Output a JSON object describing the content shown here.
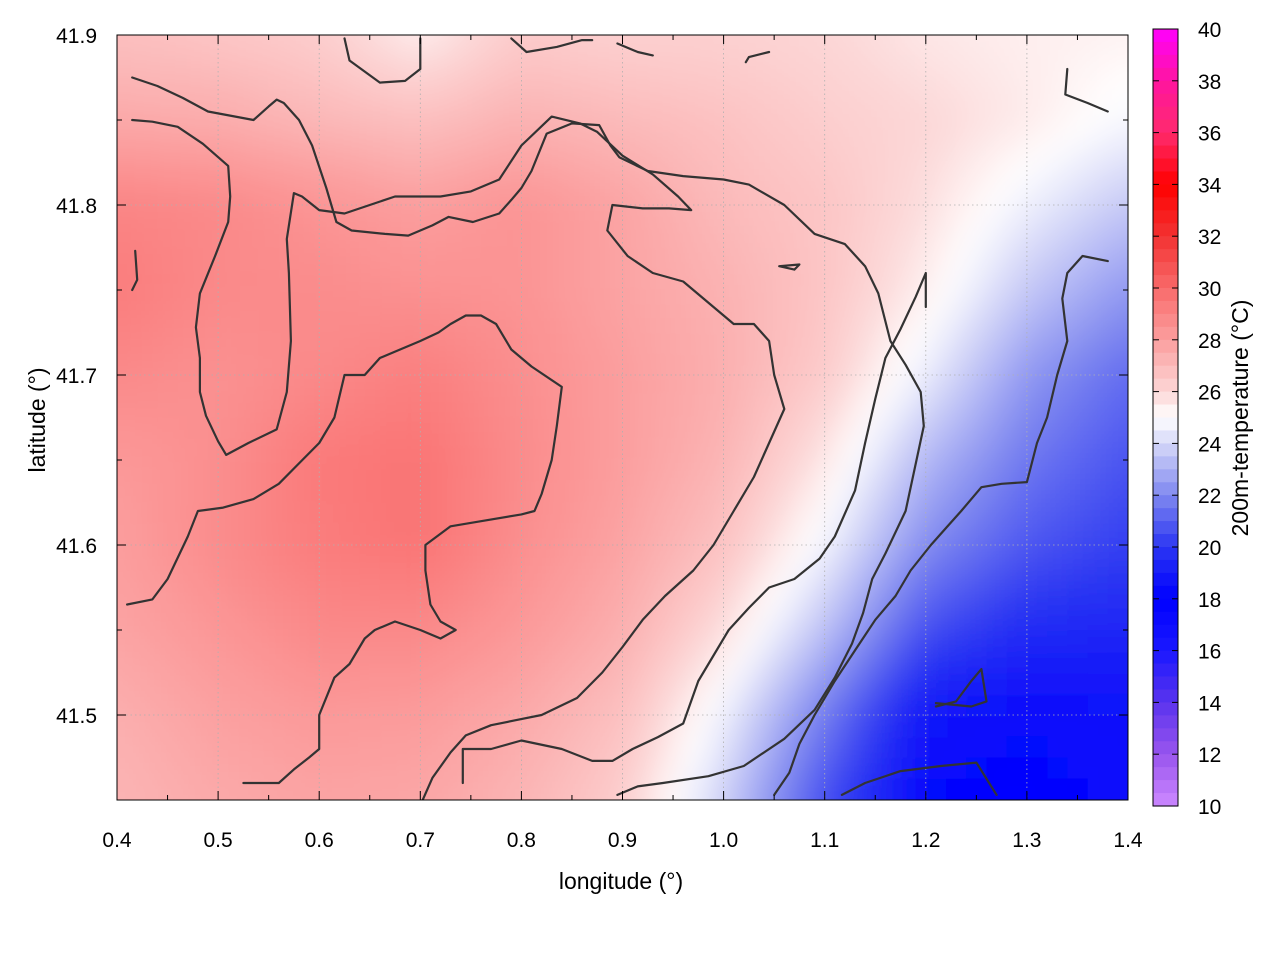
{
  "chart_data": {
    "type": "heatmap",
    "title": "",
    "xlabel": "longitude (°)",
    "ylabel": "latitude (°)",
    "colorbar_label": "200m-temperature (°C)",
    "xlim": [
      0.4,
      1.4
    ],
    "ylim": [
      41.45,
      41.9
    ],
    "clim": [
      10,
      40
    ],
    "x_ticks": [
      "0.4",
      "0.5",
      "0.6",
      "0.7",
      "0.8",
      "0.9",
      "1.0",
      "1.1",
      "1.2",
      "1.3",
      "1.4"
    ],
    "y_ticks": [
      "41.5",
      "41.6",
      "41.7",
      "41.8",
      "41.9"
    ],
    "colorbar_ticks": [
      "10",
      "12",
      "14",
      "16",
      "18",
      "20",
      "22",
      "24",
      "26",
      "28",
      "30",
      "32",
      "34",
      "36",
      "38",
      "40"
    ],
    "grid": true,
    "colormap": [
      {
        "value": 10,
        "color": "#cc88ff"
      },
      {
        "value": 12,
        "color": "#9955ee"
      },
      {
        "value": 14,
        "color": "#5a33ee"
      },
      {
        "value": 16,
        "color": "#1a18ff"
      },
      {
        "value": 18,
        "color": "#0000ff"
      },
      {
        "value": 20,
        "color": "#2b36f2"
      },
      {
        "value": 22,
        "color": "#7f88f0"
      },
      {
        "value": 24,
        "color": "#d6d8f8"
      },
      {
        "value": 25,
        "color": "#ffffff"
      },
      {
        "value": 26,
        "color": "#fcd6d6"
      },
      {
        "value": 28,
        "color": "#fb9e9e"
      },
      {
        "value": 30,
        "color": "#f96a6a"
      },
      {
        "value": 32,
        "color": "#f23232"
      },
      {
        "value": 34,
        "color": "#ff0000"
      },
      {
        "value": 36,
        "color": "#ff2a6e"
      },
      {
        "value": 38,
        "color": "#ff14a0"
      },
      {
        "value": 40,
        "color": "#ff00ff"
      }
    ],
    "temperature_grid": {
      "x": [
        0.4,
        0.5,
        0.6,
        0.7,
        0.8,
        0.9,
        1.0,
        1.1,
        1.2,
        1.3,
        1.4
      ],
      "y": [
        41.9,
        41.85,
        41.8,
        41.75,
        41.7,
        41.65,
        41.6,
        41.55,
        41.5,
        41.45
      ],
      "values": [
        [
          26.8,
          26.6,
          26.3,
          25.4,
          26.4,
          26.2,
          26.2,
          26.0,
          25.6,
          25.4,
          25.3
        ],
        [
          27.6,
          27.5,
          27.1,
          26.8,
          27.3,
          27.0,
          26.7,
          26.3,
          26.0,
          25.5,
          24.8
        ],
        [
          29.0,
          28.8,
          28.4,
          28.0,
          28.4,
          27.8,
          27.0,
          26.6,
          25.8,
          24.6,
          23.6
        ],
        [
          29.3,
          28.8,
          28.7,
          28.5,
          28.4,
          27.8,
          27.3,
          26.6,
          25.4,
          23.6,
          22.4
        ],
        [
          28.8,
          28.5,
          28.8,
          29.2,
          28.6,
          28.0,
          27.4,
          26.4,
          24.5,
          22.4,
          21.3
        ],
        [
          28.2,
          28.6,
          29.4,
          29.6,
          28.7,
          28.0,
          27.2,
          25.6,
          23.2,
          21.6,
          20.7
        ],
        [
          28.0,
          28.7,
          29.3,
          29.6,
          28.6,
          27.8,
          26.7,
          24.7,
          22.1,
          20.8,
          20.2
        ],
        [
          27.8,
          28.3,
          28.8,
          28.8,
          28.2,
          27.4,
          25.8,
          23.4,
          20.6,
          19.6,
          19.4
        ],
        [
          27.4,
          27.9,
          28.2,
          28.1,
          27.6,
          26.8,
          24.6,
          21.7,
          18.8,
          18.4,
          18.6
        ],
        [
          27.2,
          27.6,
          27.8,
          27.7,
          27.2,
          26.3,
          23.8,
          20.6,
          18.2,
          18.0,
          18.4
        ]
      ]
    },
    "contours": [
      [
        [
          0.415,
          41.875
        ],
        [
          0.44,
          41.87
        ],
        [
          0.465,
          41.863
        ],
        [
          0.49,
          41.855
        ],
        [
          0.535,
          41.85
        ],
        [
          0.55,
          41.858
        ],
        [
          0.558,
          41.862
        ],
        [
          0.565,
          41.86
        ],
        [
          0.58,
          41.85
        ],
        [
          0.593,
          41.835
        ],
        [
          0.607,
          41.81
        ],
        [
          0.617,
          41.79
        ],
        [
          0.632,
          41.785
        ],
        [
          0.665,
          41.783
        ],
        [
          0.688,
          41.782
        ],
        [
          0.712,
          41.788
        ],
        [
          0.728,
          41.793
        ],
        [
          0.752,
          41.79
        ],
        [
          0.778,
          41.795
        ],
        [
          0.79,
          41.803
        ],
        [
          0.8,
          41.81
        ],
        [
          0.81,
          41.82
        ],
        [
          0.825,
          41.842
        ],
        [
          0.85,
          41.848
        ],
        [
          0.877,
          41.847
        ],
        [
          0.888,
          41.835
        ],
        [
          0.897,
          41.828
        ],
        [
          0.925,
          41.82
        ],
        [
          0.96,
          41.817
        ],
        [
          1.0,
          41.815
        ],
        [
          1.025,
          41.812
        ],
        [
          1.06,
          41.8
        ],
        [
          1.09,
          41.783
        ],
        [
          1.12,
          41.777
        ],
        [
          1.14,
          41.764
        ],
        [
          1.153,
          41.748
        ],
        [
          1.165,
          41.72
        ],
        [
          1.18,
          41.706
        ],
        [
          1.195,
          41.69
        ],
        [
          1.198,
          41.67
        ],
        [
          1.18,
          41.62
        ],
        [
          1.16,
          41.595
        ],
        [
          1.147,
          41.58
        ],
        [
          1.138,
          41.56
        ],
        [
          1.127,
          41.542
        ],
        [
          1.11,
          41.522
        ],
        [
          1.09,
          41.503
        ],
        [
          1.06,
          41.486
        ],
        [
          1.02,
          41.47
        ],
        [
          0.985,
          41.464
        ],
        [
          0.94,
          41.46
        ],
        [
          0.915,
          41.458
        ],
        [
          0.895,
          41.453
        ]
      ],
      [
        [
          0.415,
          41.85
        ],
        [
          0.435,
          41.849
        ],
        [
          0.46,
          41.846
        ],
        [
          0.485,
          41.836
        ],
        [
          0.51,
          41.823
        ],
        [
          0.512,
          41.805
        ],
        [
          0.51,
          41.79
        ],
        [
          0.497,
          41.77
        ],
        [
          0.482,
          41.748
        ],
        [
          0.478,
          41.728
        ],
        [
          0.482,
          41.71
        ],
        [
          0.482,
          41.69
        ],
        [
          0.488,
          41.676
        ],
        [
          0.5,
          41.661
        ],
        [
          0.508,
          41.653
        ],
        [
          0.53,
          41.66
        ],
        [
          0.558,
          41.668
        ],
        [
          0.568,
          41.69
        ],
        [
          0.572,
          41.72
        ],
        [
          0.57,
          41.76
        ],
        [
          0.568,
          41.78
        ],
        [
          0.575,
          41.807
        ],
        [
          0.583,
          41.805
        ],
        [
          0.6,
          41.797
        ],
        [
          0.625,
          41.795
        ],
        [
          0.675,
          41.805
        ],
        [
          0.72,
          41.805
        ],
        [
          0.75,
          41.808
        ],
        [
          0.778,
          41.815
        ],
        [
          0.8,
          41.835
        ],
        [
          0.83,
          41.852
        ],
        [
          0.858,
          41.848
        ],
        [
          0.875,
          41.843
        ],
        [
          0.9,
          41.829
        ],
        [
          0.93,
          41.818
        ],
        [
          0.955,
          41.805
        ],
        [
          0.968,
          41.797
        ],
        [
          0.946,
          41.798
        ],
        [
          0.92,
          41.798
        ],
        [
          0.89,
          41.8
        ],
        [
          0.885,
          41.785
        ],
        [
          0.905,
          41.77
        ],
        [
          0.93,
          41.76
        ],
        [
          0.96,
          41.755
        ],
        [
          0.99,
          41.74
        ],
        [
          1.01,
          41.73
        ],
        [
          1.03,
          41.73
        ],
        [
          1.045,
          41.72
        ],
        [
          1.05,
          41.7
        ],
        [
          1.06,
          41.68
        ],
        [
          1.045,
          41.66
        ],
        [
          1.03,
          41.64
        ],
        [
          1.01,
          41.62
        ],
        [
          0.99,
          41.6
        ],
        [
          0.97,
          41.585
        ],
        [
          0.942,
          41.57
        ],
        [
          0.92,
          41.556
        ],
        [
          0.9,
          41.54
        ],
        [
          0.88,
          41.525
        ],
        [
          0.855,
          41.51
        ],
        [
          0.82,
          41.5
        ],
        [
          0.795,
          41.497
        ],
        [
          0.77,
          41.494
        ],
        [
          0.745,
          41.488
        ],
        [
          0.73,
          41.478
        ],
        [
          0.712,
          41.463
        ],
        [
          0.695,
          41.44
        ]
      ],
      [
        [
          0.41,
          41.565
        ],
        [
          0.435,
          41.568
        ],
        [
          0.45,
          41.58
        ],
        [
          0.47,
          41.605
        ],
        [
          0.48,
          41.62
        ],
        [
          0.505,
          41.622
        ],
        [
          0.535,
          41.627
        ],
        [
          0.56,
          41.636
        ],
        [
          0.58,
          41.648
        ],
        [
          0.6,
          41.66
        ],
        [
          0.615,
          41.675
        ],
        [
          0.625,
          41.7
        ],
        [
          0.645,
          41.7
        ],
        [
          0.66,
          41.71
        ],
        [
          0.68,
          41.715
        ],
        [
          0.7,
          41.72
        ],
        [
          0.718,
          41.725
        ],
        [
          0.73,
          41.73
        ],
        [
          0.745,
          41.735
        ],
        [
          0.76,
          41.735
        ],
        [
          0.775,
          41.73
        ],
        [
          0.79,
          41.715
        ],
        [
          0.81,
          41.705
        ],
        [
          0.84,
          41.693
        ],
        [
          0.835,
          41.67
        ],
        [
          0.83,
          41.65
        ],
        [
          0.82,
          41.63
        ],
        [
          0.813,
          41.62
        ],
        [
          0.8,
          41.618
        ],
        [
          0.76,
          41.614
        ],
        [
          0.73,
          41.611
        ],
        [
          0.705,
          41.6
        ],
        [
          0.705,
          41.585
        ],
        [
          0.71,
          41.565
        ],
        [
          0.72,
          41.555
        ],
        [
          0.735,
          41.55
        ],
        [
          0.72,
          41.545
        ],
        [
          0.7,
          41.55
        ],
        [
          0.675,
          41.555
        ],
        [
          0.655,
          41.55
        ],
        [
          0.645,
          41.545
        ],
        [
          0.63,
          41.53
        ],
        [
          0.615,
          41.522
        ],
        [
          0.6,
          41.5
        ],
        [
          0.6,
          41.48
        ],
        [
          0.59,
          41.475
        ],
        [
          0.575,
          41.468
        ],
        [
          0.56,
          41.46
        ],
        [
          0.545,
          41.46
        ],
        [
          0.525,
          41.46
        ]
      ],
      [
        [
          0.742,
          41.46
        ],
        [
          0.742,
          41.48
        ],
        [
          0.77,
          41.48
        ],
        [
          0.8,
          41.485
        ],
        [
          0.84,
          41.48
        ],
        [
          0.87,
          41.473
        ],
        [
          0.89,
          41.473
        ],
        [
          0.91,
          41.48
        ],
        [
          0.935,
          41.487
        ],
        [
          0.96,
          41.495
        ],
        [
          0.975,
          41.52
        ],
        [
          0.99,
          41.535
        ],
        [
          1.005,
          41.55
        ],
        [
          1.025,
          41.563
        ],
        [
          1.045,
          41.575
        ],
        [
          1.07,
          41.58
        ],
        [
          1.095,
          41.592
        ],
        [
          1.11,
          41.605
        ],
        [
          1.13,
          41.632
        ],
        [
          1.14,
          41.66
        ],
        [
          1.15,
          41.686
        ],
        [
          1.16,
          41.71
        ],
        [
          1.175,
          41.727
        ],
        [
          1.19,
          41.746
        ],
        [
          1.2,
          41.76
        ],
        [
          1.2,
          41.74
        ]
      ],
      [
        [
          1.05,
          41.453
        ],
        [
          1.065,
          41.466
        ],
        [
          1.075,
          41.483
        ],
        [
          1.09,
          41.5
        ],
        [
          1.11,
          41.52
        ],
        [
          1.13,
          41.538
        ],
        [
          1.15,
          41.556
        ],
        [
          1.17,
          41.57
        ],
        [
          1.185,
          41.585
        ],
        [
          1.205,
          41.6
        ],
        [
          1.22,
          41.61
        ],
        [
          1.235,
          41.62
        ],
        [
          1.255,
          41.634
        ],
        [
          1.275,
          41.636
        ],
        [
          1.3,
          41.637
        ],
        [
          1.31,
          41.66
        ],
        [
          1.32,
          41.675
        ],
        [
          1.33,
          41.7
        ],
        [
          1.34,
          41.72
        ],
        [
          1.335,
          41.745
        ],
        [
          1.34,
          41.76
        ],
        [
          1.355,
          41.77
        ],
        [
          1.38,
          41.767
        ]
      ],
      [
        [
          1.21,
          41.505
        ],
        [
          1.23,
          41.508
        ],
        [
          1.245,
          41.52
        ],
        [
          1.255,
          41.527
        ],
        [
          1.26,
          41.508
        ],
        [
          1.245,
          41.505
        ],
        [
          1.21,
          41.507
        ]
      ],
      [
        [
          1.117,
          41.453
        ],
        [
          1.14,
          41.46
        ],
        [
          1.175,
          41.467
        ],
        [
          1.215,
          41.47
        ],
        [
          1.25,
          41.472
        ],
        [
          1.27,
          41.453
        ]
      ],
      [
        [
          0.625,
          41.898
        ],
        [
          0.63,
          41.885
        ],
        [
          0.66,
          41.872
        ],
        [
          0.685,
          41.873
        ],
        [
          0.7,
          41.88
        ],
        [
          0.7,
          41.898
        ]
      ],
      [
        [
          0.79,
          41.898
        ],
        [
          0.805,
          41.89
        ],
        [
          0.835,
          41.893
        ],
        [
          0.86,
          41.897
        ],
        [
          0.87,
          41.897
        ]
      ],
      [
        [
          0.895,
          41.895
        ],
        [
          0.915,
          41.89
        ],
        [
          0.93,
          41.888
        ]
      ],
      [
        [
          1.022,
          41.884
        ],
        [
          1.025,
          41.887
        ],
        [
          1.045,
          41.89
        ]
      ],
      [
        [
          1.34,
          41.88
        ],
        [
          1.338,
          41.865
        ],
        [
          1.36,
          41.86
        ],
        [
          1.38,
          41.855
        ]
      ],
      [
        [
          1.07,
          41.762
        ],
        [
          1.055,
          41.764
        ],
        [
          1.075,
          41.765
        ],
        [
          1.07,
          41.762
        ]
      ],
      [
        [
          0.415,
          41.75
        ],
        [
          0.42,
          41.756
        ],
        [
          0.418,
          41.773
        ]
      ]
    ]
  }
}
